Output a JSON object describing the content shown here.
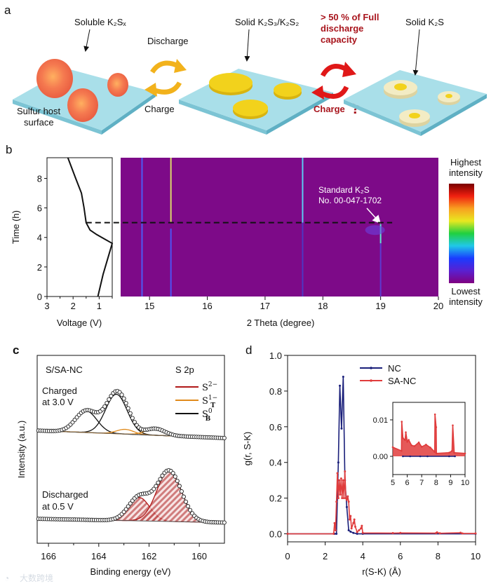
{
  "panel_labels": {
    "a": "a",
    "b": "b",
    "c": "c",
    "d": "d"
  },
  "panel_a": {
    "soluble_label": "Soluble K₂Sₓ",
    "host_label_line1": "Sulfur host",
    "host_label_line2": "surface",
    "discharge_label": "Discharge",
    "charge_label": "Charge",
    "solid_k2s3_label": "Solid K₂S₃/K₂S₂",
    "capacity_line1": "> 50 % of Full",
    "capacity_line2": "discharge",
    "capacity_line3": "capacity",
    "charge_question_label": "Charge",
    "question_mark": "?",
    "solid_k2s_label": "Solid K₂S",
    "colors": {
      "slab_top": "#a9dfe9",
      "slab_side": "#7cc4d4",
      "polysulfide": "#f07048",
      "k2s3": "#f2d21c",
      "k2s": "#f3ecc4",
      "orange_arrow": "#f2b21c",
      "red_arrow": "#e01818",
      "red_text": "#a8141c"
    }
  },
  "watermark": "大数跨境",
  "chart_data": [
    {
      "id": "b-voltage",
      "type": "line",
      "xlabel": "Voltage (V)",
      "ylabel": "Time (h)",
      "xlim": [
        3,
        0.5
      ],
      "ylim": [
        0,
        9.4
      ],
      "xticks": [
        3,
        2,
        1
      ],
      "yticks": [
        0,
        2,
        4,
        6,
        8
      ],
      "series": [
        {
          "name": "voltage profile",
          "color": "#111111",
          "points": [
            [
              1.05,
              0
            ],
            [
              0.85,
              1.5
            ],
            [
              0.6,
              3
            ],
            [
              0.5,
              3.6
            ],
            [
              0.8,
              3.9
            ],
            [
              1.1,
              4.2
            ],
            [
              1.35,
              4.5
            ],
            [
              1.5,
              5.0
            ],
            [
              1.58,
              6.0
            ],
            [
              1.68,
              7.0
            ],
            [
              1.9,
              8.0
            ],
            [
              2.2,
              9.4
            ]
          ]
        }
      ],
      "dashed_time": 5
    },
    {
      "id": "b-heatmap",
      "type": "heatmap",
      "xlabel": "2 Theta (degree)",
      "xlim": [
        14.5,
        20
      ],
      "ylim": [
        0,
        9.4
      ],
      "xticks": [
        15,
        16,
        17,
        18,
        19,
        20
      ],
      "background": "#7d0a88",
      "peaks": [
        {
          "two_theta": 14.87,
          "t_from": 0,
          "t_to": 9.4,
          "color": "#4a64ff"
        },
        {
          "two_theta": 15.37,
          "t_from": 5,
          "t_to": 9.4,
          "color": "#e6f06a"
        },
        {
          "two_theta": 15.37,
          "t_from": 0,
          "t_to": 4.6,
          "color": "#4a5cff"
        },
        {
          "two_theta": 17.65,
          "t_from": 5,
          "t_to": 9.4,
          "color": "#58e0ff"
        },
        {
          "two_theta": 17.65,
          "t_from": 0,
          "t_to": 5,
          "color": "#4a3cc8"
        },
        {
          "two_theta": 19.0,
          "t_from": 3.6,
          "t_to": 4.9,
          "color": "#5cffd8"
        },
        {
          "two_theta": 19.0,
          "t_from": 0,
          "t_to": 3.6,
          "color": "#5a40d8"
        }
      ],
      "annotation_line1": "Standard K₂S",
      "annotation_line2": "No. 00-047-1702",
      "colorbar_high": "Highest intensity",
      "colorbar_low": "Lowest intensity",
      "colorbar_colors": [
        "#800080",
        "#5a20d0",
        "#1a3cff",
        "#20c8e8",
        "#20d040",
        "#e8e820",
        "#f8a020",
        "#f02010",
        "#7a0000"
      ]
    },
    {
      "id": "c-xps",
      "type": "line",
      "title": "S/SA-NC",
      "xlabel": "Binding energy (eV)",
      "ylabel": "Intensity (a.u.)",
      "xlim": [
        166.45,
        159
      ],
      "ylim": [
        0,
        10
      ],
      "xticks": [
        166,
        164,
        162,
        160
      ],
      "legend_title": "S 2p",
      "legend": [
        {
          "base": "S",
          "sup": "2−",
          "sub": "",
          "color": "#b01818"
        },
        {
          "base": "S",
          "sup": "1−",
          "sub": "T",
          "color": "#e08a1c"
        },
        {
          "base": "S",
          "sup": "0",
          "sub": "B",
          "color": "#111111"
        }
      ],
      "spectra": [
        {
          "name": "charged",
          "label_line1": "Charged",
          "label_line2": "at 3.0 V",
          "baseline": [
            6.0,
            5.6
          ],
          "components": [
            {
              "species": "S0_B",
              "center": 164.5,
              "height": 1.15,
              "fwhm": 1.0,
              "color": "#111111"
            },
            {
              "species": "S0_B",
              "center": 163.3,
              "height": 2.1,
              "fwhm": 1.0,
              "color": "#111111"
            },
            {
              "species": "S1-_T",
              "center": 162.95,
              "height": 0.25,
              "fwhm": 0.8,
              "color": "#e08a1c"
            },
            {
              "species": "S1-_T",
              "center": 161.75,
              "height": 0.35,
              "fwhm": 0.9,
              "color": "#e08a1c"
            }
          ]
        },
        {
          "name": "discharged",
          "label_line1": "Discharged",
          "label_line2": "at 0.5 V",
          "baseline": [
            1.3,
            1.1
          ],
          "components": [
            {
              "species": "S2-",
              "center": 162.4,
              "height": 1.25,
              "fwhm": 1.0,
              "color": "#b01818"
            },
            {
              "species": "S2-",
              "center": 161.2,
              "height": 2.7,
              "fwhm": 1.15,
              "color": "#b01818"
            }
          ]
        }
      ]
    },
    {
      "id": "d-rdf",
      "type": "line",
      "xlabel": "r(S-K) (Å)",
      "ylabel": "g(r, S-K)",
      "xlim": [
        0,
        10
      ],
      "ylim": [
        -0.045,
        1.0
      ],
      "xticks": [
        0,
        2,
        4,
        6,
        8,
        10
      ],
      "yticks": [
        0.0,
        0.2,
        0.4,
        0.6,
        0.8,
        1.0
      ],
      "series": [
        {
          "name": "NC",
          "color": "#1a1f7a",
          "points": [
            [
              0,
              0
            ],
            [
              2.5,
              0
            ],
            [
              2.6,
              0
            ],
            [
              2.7,
              0.4
            ],
            [
              2.78,
              0.83
            ],
            [
              2.87,
              0.59
            ],
            [
              2.96,
              0.88
            ],
            [
              3.05,
              0.3
            ],
            [
              3.15,
              0.15
            ],
            [
              3.25,
              0.02
            ],
            [
              3.35,
              0.012
            ],
            [
              3.5,
              0.005
            ],
            [
              3.7,
              0
            ],
            [
              4,
              0
            ],
            [
              10,
              0
            ]
          ]
        },
        {
          "name": "SA-NC",
          "color": "#e03c3c",
          "points": [
            [
              0,
              0
            ],
            [
              2.45,
              0
            ],
            [
              2.5,
              0.06
            ],
            [
              2.55,
              0.02
            ],
            [
              2.6,
              0.18
            ],
            [
              2.65,
              0.34
            ],
            [
              2.7,
              0.2
            ],
            [
              2.75,
              0.3
            ],
            [
              2.8,
              0.22
            ],
            [
              2.85,
              0.31
            ],
            [
              2.9,
              0.2
            ],
            [
              2.95,
              0.3
            ],
            [
              3.0,
              0.2
            ],
            [
              3.05,
              0.35
            ],
            [
              3.1,
              0.2
            ],
            [
              3.15,
              0.19
            ],
            [
              3.2,
              0.21
            ],
            [
              3.25,
              0.18
            ],
            [
              3.3,
              0.08
            ],
            [
              3.35,
              0.1
            ],
            [
              3.4,
              0.03
            ],
            [
              3.5,
              0.06
            ],
            [
              3.55,
              0.08
            ],
            [
              3.6,
              0.04
            ],
            [
              3.7,
              0.01
            ],
            [
              3.8,
              0.02
            ],
            [
              3.9,
              0.03
            ],
            [
              3.95,
              0.045
            ],
            [
              4.0,
              0.005
            ],
            [
              5.6,
              0.004
            ],
            [
              6.0,
              0.005
            ],
            [
              7.9,
              0.004
            ],
            [
              7.95,
              0.008
            ],
            [
              8.1,
              0.003
            ],
            [
              9.2,
              0.006
            ],
            [
              9.3,
              0.002
            ],
            [
              10,
              0.002
            ]
          ]
        }
      ],
      "inset": {
        "xlim": [
          5,
          10
        ],
        "ylim": [
          -0.005,
          0.0148
        ],
        "xticks": [
          5,
          6,
          7,
          8,
          9,
          10
        ],
        "yticks": [
          0.0,
          0.01
        ],
        "ytick_labels": [
          "0.00",
          "0.01"
        ],
        "series": [
          {
            "name": "NC",
            "color": "#1a1f7a",
            "points": [
              [
                5.7,
                0
              ],
              [
                6.2,
                0
              ],
              [
                6.9,
                0
              ],
              [
                7.4,
                0
              ],
              [
                8.9,
                0
              ],
              [
                9.3,
                0
              ]
            ]
          },
          {
            "name": "SA-NC",
            "color": "#e03c3c",
            "points": [
              [
                5,
                0.0025
              ],
              [
                5.6,
                0.0015
              ],
              [
                5.62,
                0.0095
              ],
              [
                5.7,
                0.005
              ],
              [
                5.85,
                0.0045
              ],
              [
                5.9,
                0.0066
              ],
              [
                6.0,
                0.004
              ],
              [
                6.1,
                0.0045
              ],
              [
                6.3,
                0.003
              ],
              [
                6.5,
                0.0028
              ],
              [
                6.8,
                0.0038
              ],
              [
                7.0,
                0.0026
              ],
              [
                7.3,
                0.0032
              ],
              [
                7.6,
                0.0024
              ],
              [
                7.9,
                0.0012
              ],
              [
                7.92,
                0.0115
              ],
              [
                8.0,
                0.008
              ],
              [
                8.02,
                0.0008
              ],
              [
                8.9,
                0.001
              ],
              [
                9.1,
                0.0015
              ],
              [
                9.15,
                0.0085
              ],
              [
                9.25,
                0.001
              ],
              [
                10,
                0.0008
              ]
            ]
          }
        ]
      }
    }
  ]
}
